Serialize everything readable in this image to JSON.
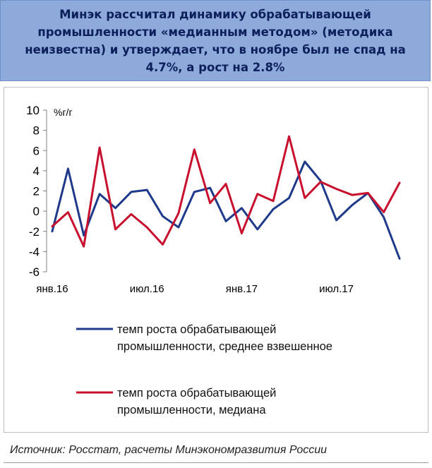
{
  "header": {
    "title": "Минэк рассчитал динамику обрабатывающей промышленности «медианным методом» (методика неизвестна) и утверждает, что в ноябре был не спад на 4.7%, а рост на 2.8%"
  },
  "footer": {
    "source": "Источник: Росстат, расчеты Минэкономразвития России"
  },
  "chart_data": {
    "type": "line",
    "unit_label": "%г/г",
    "ylim": [
      -6,
      10
    ],
    "yticks": [
      -6,
      -4,
      -2,
      0,
      2,
      4,
      6,
      8,
      10
    ],
    "xtick_labels": [
      {
        "index": 0,
        "label": "янв.16"
      },
      {
        "index": 6,
        "label": "июл.16"
      },
      {
        "index": 12,
        "label": "янв.17"
      },
      {
        "index": 18,
        "label": "июл.17"
      }
    ],
    "legend_position": "bottom",
    "grid": false,
    "series": [
      {
        "name": "темп роста обрабатывающей промышленности, среднее взвешенное",
        "color": "#1f3a8a",
        "values": [
          -2.0,
          4.2,
          -2.4,
          1.7,
          0.3,
          1.9,
          2.1,
          -0.5,
          -1.6,
          1.9,
          2.3,
          -1.0,
          0.3,
          -1.8,
          0.2,
          1.3,
          4.9,
          3.0,
          -0.9,
          0.6,
          1.8,
          -0.6,
          -4.7
        ]
      },
      {
        "name": "темп роста обрабатывающей промышленности, медиана",
        "color": "#c8102e",
        "values": [
          -1.5,
          -0.1,
          -3.5,
          6.3,
          -1.8,
          -0.3,
          -1.6,
          -3.3,
          -0.2,
          6.1,
          0.8,
          2.7,
          -2.2,
          1.7,
          1.0,
          7.4,
          1.3,
          2.9,
          2.2,
          1.6,
          1.8,
          -0.1,
          2.8
        ]
      }
    ]
  }
}
